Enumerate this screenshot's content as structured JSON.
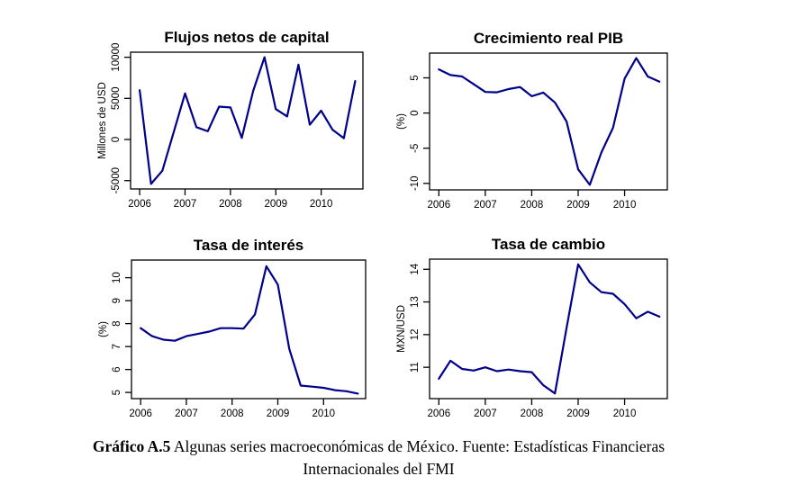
{
  "figure": {
    "line_color": "#00008B",
    "axis_color": "#000000",
    "background": "#ffffff"
  },
  "caption": {
    "bold": "Gráfico A.5",
    "rest": "Algunas series macroeconómicas de México. Fuente: Estadísticas Financieras",
    "line2": "Internacionales del FMI"
  },
  "chart_data": [
    {
      "type": "line",
      "title": "Flujos netos de capital",
      "xlabel": "",
      "ylabel": "Millones de USD",
      "legend": "none",
      "grid": false,
      "x": [
        2006,
        2006.25,
        2006.5,
        2006.75,
        2007,
        2007.25,
        2007.5,
        2007.75,
        2008,
        2008.25,
        2008.5,
        2008.75,
        2009,
        2009.25,
        2009.5,
        2009.75,
        2010,
        2010.25,
        2010.5,
        2010.75
      ],
      "values": [
        6000,
        -5400,
        -3800,
        900,
        5600,
        1500,
        1000,
        4000,
        3900,
        200,
        5900,
        10000,
        3700,
        2800,
        9100,
        1800,
        3500,
        1200,
        150,
        7100
      ],
      "xticks": [
        2006,
        2007,
        2008,
        2009,
        2010
      ],
      "yticks": [
        -5000,
        0,
        5000,
        10000
      ],
      "xlim": [
        2005.8,
        2010.92
      ],
      "ylim": [
        -6016,
        10616
      ]
    },
    {
      "type": "line",
      "title": "Crecimiento real PIB",
      "xlabel": "",
      "ylabel": "(%)",
      "legend": "none",
      "grid": false,
      "x": [
        2006,
        2006.25,
        2006.5,
        2006.75,
        2007,
        2007.25,
        2007.5,
        2007.75,
        2008,
        2008.25,
        2008.5,
        2008.75,
        2009,
        2009.25,
        2009.5,
        2009.75,
        2010,
        2010.25,
        2010.5,
        2010.75
      ],
      "values": [
        6.2,
        5.4,
        5.2,
        4.1,
        3.0,
        2.95,
        3.4,
        3.7,
        2.4,
        2.9,
        1.5,
        -1.2,
        -8.0,
        -10.2,
        -5.6,
        -2.1,
        4.9,
        7.8,
        5.2,
        4.45
      ],
      "xticks": [
        2006,
        2007,
        2008,
        2009,
        2010
      ],
      "yticks": [
        -10,
        -5,
        0,
        5
      ],
      "xlim": [
        2005.8,
        2010.92
      ],
      "ylim": [
        -10.92,
        8.52
      ]
    },
    {
      "type": "line",
      "title": "Tasa de interés",
      "xlabel": "",
      "ylabel": "(%)",
      "legend": "none",
      "grid": false,
      "x": [
        2006,
        2006.25,
        2006.5,
        2006.75,
        2007,
        2007.25,
        2007.5,
        2007.75,
        2008,
        2008.25,
        2008.5,
        2008.75,
        2009,
        2009.25,
        2009.5,
        2009.75,
        2010,
        2010.25,
        2010.5,
        2010.75
      ],
      "values": [
        7.8,
        7.45,
        7.3,
        7.25,
        7.45,
        7.55,
        7.65,
        7.8,
        7.8,
        7.78,
        8.4,
        10.5,
        9.7,
        6.9,
        5.3,
        5.25,
        5.2,
        5.1,
        5.05,
        4.95
      ],
      "xticks": [
        2006,
        2007,
        2008,
        2009,
        2010
      ],
      "yticks": [
        5,
        6,
        7,
        8,
        9,
        10
      ],
      "xlim": [
        2005.8,
        2010.92
      ],
      "ylim": [
        4.73,
        10.77
      ]
    },
    {
      "type": "line",
      "title": "Tasa de cambio",
      "xlabel": "",
      "ylabel": "MXN/USD",
      "legend": "none",
      "grid": false,
      "x": [
        2006,
        2006.25,
        2006.5,
        2006.75,
        2007,
        2007.25,
        2007.5,
        2007.75,
        2008,
        2008.25,
        2008.5,
        2008.75,
        2009,
        2009.25,
        2009.5,
        2009.75,
        2010,
        2010.25,
        2010.5,
        2010.75
      ],
      "values": [
        10.65,
        11.2,
        10.95,
        10.9,
        11.0,
        10.88,
        10.93,
        10.88,
        10.85,
        10.45,
        10.2,
        12.2,
        14.15,
        13.6,
        13.3,
        13.25,
        12.93,
        12.5,
        12.7,
        12.55
      ],
      "xticks": [
        2006,
        2007,
        2008,
        2009,
        2010
      ],
      "yticks": [
        11,
        12,
        13,
        14
      ],
      "xlim": [
        2005.8,
        2010.92
      ],
      "ylim": [
        10.04,
        14.31
      ]
    }
  ]
}
